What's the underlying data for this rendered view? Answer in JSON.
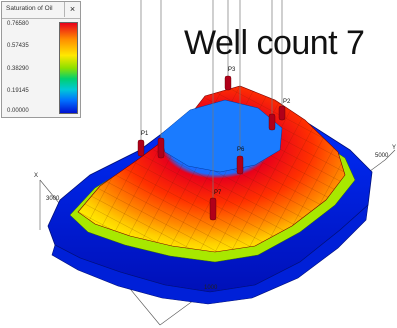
{
  "legend": {
    "title": "Saturation of Oil",
    "close_label": "×",
    "ticks": [
      "0.76580",
      "0.57435",
      "0.38290",
      "0.19145",
      "0.00000"
    ]
  },
  "headline": "Well count 7",
  "axes": {
    "x_label": "X",
    "y_label": "Y",
    "x_tick": "3000",
    "y_tick": "5000",
    "z_tick": "1000"
  },
  "wells": [
    {
      "name": "P1"
    },
    {
      "name": "P2"
    },
    {
      "name": "P3"
    },
    {
      "name": "P6"
    },
    {
      "name": "P7"
    }
  ],
  "colors": {
    "high": "#e8001b",
    "mid": "#ffe800",
    "low": "#0010d0",
    "well_marker": "#b0001a"
  }
}
